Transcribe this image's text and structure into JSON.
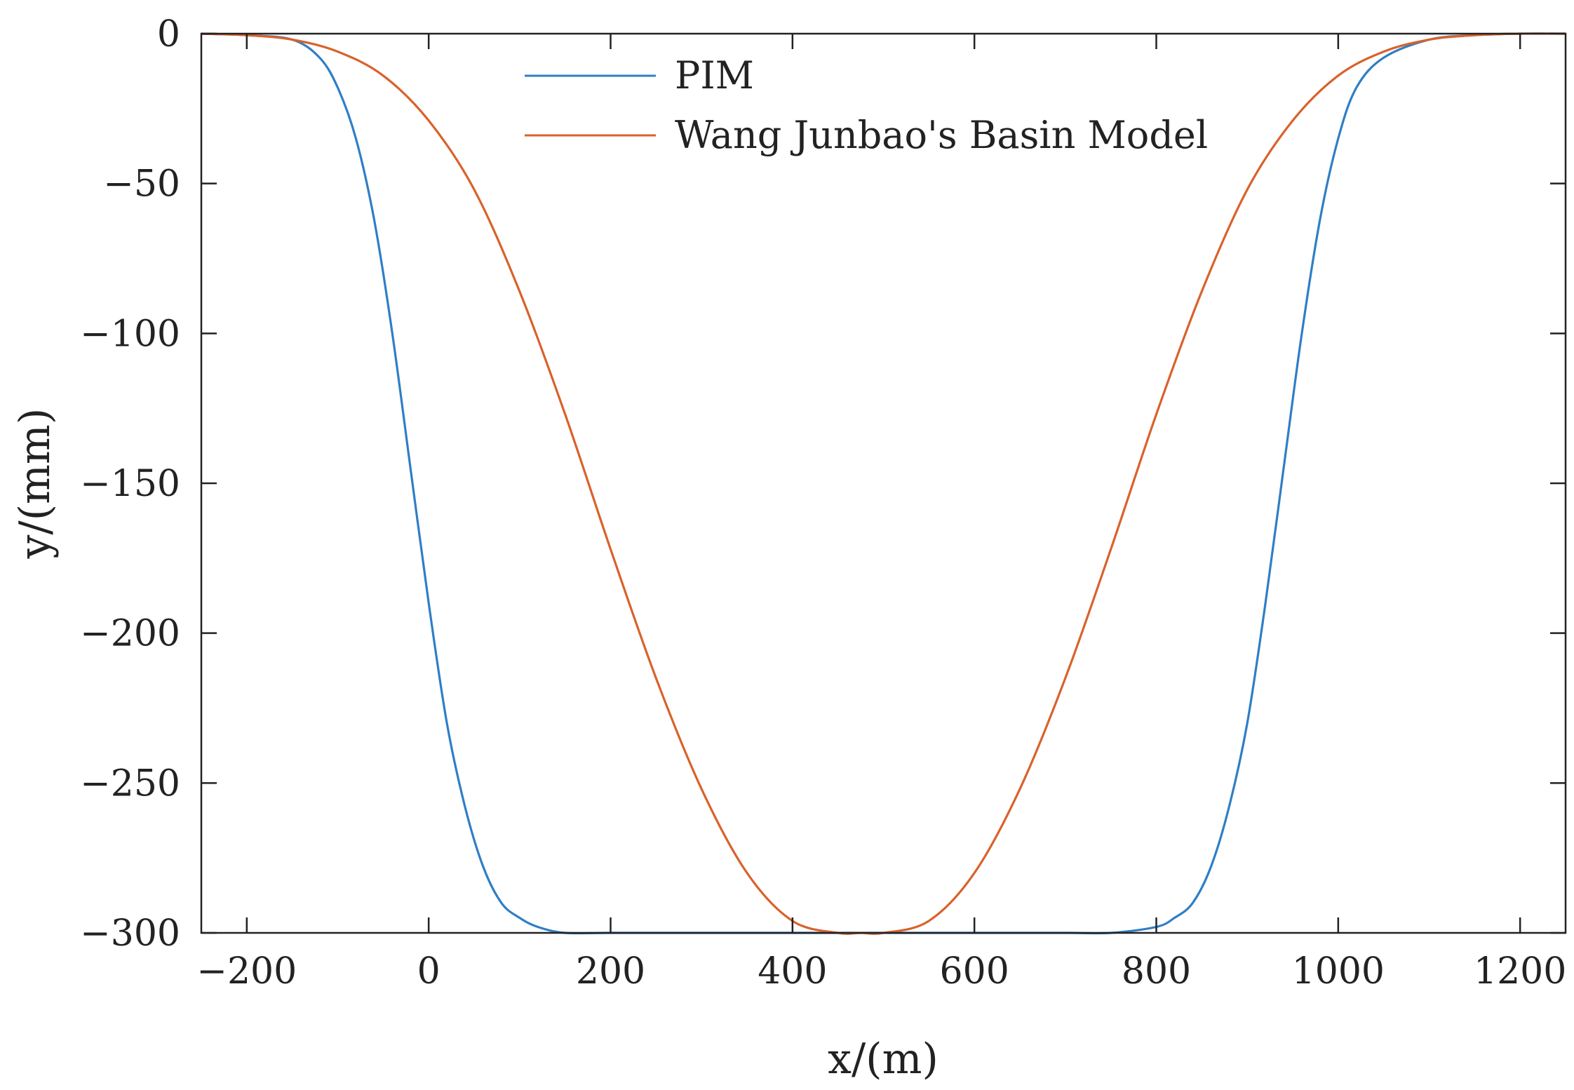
{
  "chart_data": {
    "type": "line",
    "title": "",
    "xlabel": "x/(m)",
    "ylabel": "y/(mm)",
    "xlim": [
      -250,
      1250
    ],
    "ylim": [
      -300,
      0
    ],
    "xticks": [
      -200,
      0,
      200,
      400,
      600,
      800,
      1000,
      1200
    ],
    "yticks": [
      0,
      -50,
      -100,
      -150,
      -200,
      -250,
      -300
    ],
    "xtick_labels": [
      "−200",
      "0",
      "200",
      "400",
      "600",
      "800",
      "1000",
      "1200"
    ],
    "ytick_labels": [
      "0",
      "−50",
      "−100",
      "−150",
      "−200",
      "−250",
      "−300"
    ],
    "grid": false,
    "legend_position": "top-center",
    "series": [
      {
        "name": "PIM",
        "color": "#2f7ec6",
        "x": [
          -250,
          -200,
          -150,
          -120,
          -100,
          -80,
          -60,
          -40,
          -20,
          0,
          20,
          40,
          60,
          80,
          100,
          120,
          150,
          200,
          300,
          400,
          500,
          600,
          700,
          750,
          800,
          820,
          840,
          860,
          880,
          900,
          920,
          940,
          960,
          980,
          1000,
          1020,
          1050,
          1100,
          1150,
          1200,
          1250
        ],
        "y": [
          0,
          -0.5,
          -2,
          -8,
          -18,
          -35,
          -62,
          -100,
          -145,
          -190,
          -230,
          -258,
          -278,
          -290,
          -295,
          -298,
          -300,
          -300,
          -300,
          -300,
          -300,
          -300,
          -300,
          -300,
          -298,
          -295,
          -290,
          -278,
          -258,
          -230,
          -190,
          -145,
          -100,
          -62,
          -35,
          -18,
          -8,
          -2,
          -0.5,
          0,
          0
        ]
      },
      {
        "name": "Wang Junbao's Basin Model",
        "color": "#d9622b",
        "x": [
          -250,
          -200,
          -150,
          -100,
          -50,
          0,
          50,
          100,
          150,
          200,
          250,
          300,
          350,
          400,
          450,
          475,
          500,
          550,
          600,
          650,
          700,
          750,
          800,
          850,
          900,
          950,
          1000,
          1050,
          1100,
          1150,
          1200,
          1250
        ],
        "y": [
          0,
          -0.5,
          -2,
          -6,
          -14,
          -29,
          -52,
          -86,
          -127,
          -172,
          -215,
          -252,
          -280,
          -296,
          -300,
          -300,
          -300,
          -296,
          -280,
          -252,
          -215,
          -172,
          -127,
          -86,
          -52,
          -29,
          -14,
          -6,
          -2,
          -0.5,
          0,
          0
        ]
      }
    ]
  }
}
